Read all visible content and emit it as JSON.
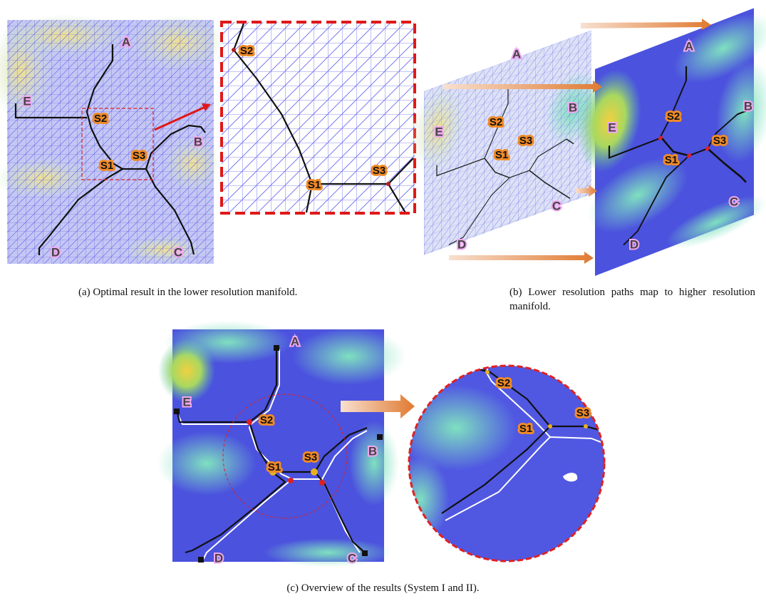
{
  "panels": [
    {
      "caption": "(a) Optimal result in the lower resolution manifold.",
      "labels": [
        "A",
        "B",
        "C",
        "D",
        "E",
        "S2",
        "S1",
        "S3"
      ],
      "zoom_labels": [
        "S2",
        "S1",
        "S3"
      ]
    },
    {
      "caption": "(b) Lower resolution paths map to higher resolution manifold.",
      "low_labels": [
        "A",
        "B",
        "C",
        "D",
        "E",
        "S2",
        "S3",
        "S1"
      ],
      "high_labels": [
        "A",
        "B",
        "C",
        "D",
        "E",
        "S2",
        "S3",
        "S1"
      ]
    },
    {
      "caption": "(c) Overview of the results (System I and II).",
      "labels": [
        "A",
        "B",
        "C",
        "D",
        "E",
        "S2",
        "S1",
        "S3"
      ],
      "zoom_labels": [
        "S2",
        "S3",
        "S1"
      ]
    }
  ]
}
